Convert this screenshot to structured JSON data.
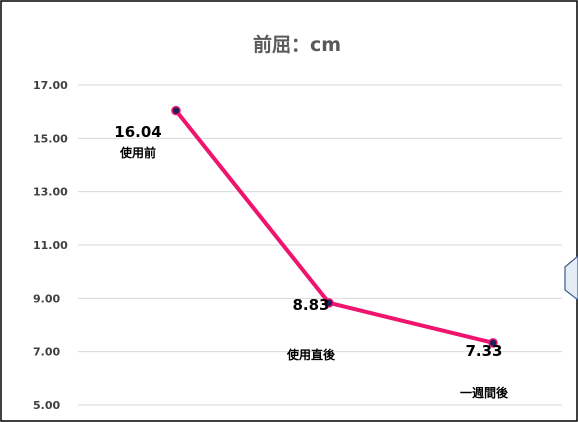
{
  "chart_data": {
    "type": "line",
    "title": "前屈：cm",
    "xlabel": "",
    "ylabel": "",
    "categories": [
      "使用前",
      "使用直後",
      "一週間後"
    ],
    "series": [
      {
        "values": [
          16.04,
          8.83,
          7.33
        ]
      }
    ],
    "data_labels": [
      "16.04",
      "8.83",
      "7.33"
    ],
    "y_ticks": [
      "17.00",
      "15.00",
      "13.00",
      "11.00",
      "9.00",
      "7.00",
      "5.00"
    ],
    "y_tick_values": [
      17,
      15,
      13,
      11,
      9,
      7,
      5
    ],
    "ylim": [
      5,
      17
    ],
    "grid": true,
    "legend": "none",
    "colors": {
      "line": "#f0146e",
      "marker": "#1f1f5c",
      "grid": "#d9d9d9",
      "border": "#000000",
      "callout_border": "#3b5a8c",
      "callout_fill": "#e6ecf5"
    }
  }
}
